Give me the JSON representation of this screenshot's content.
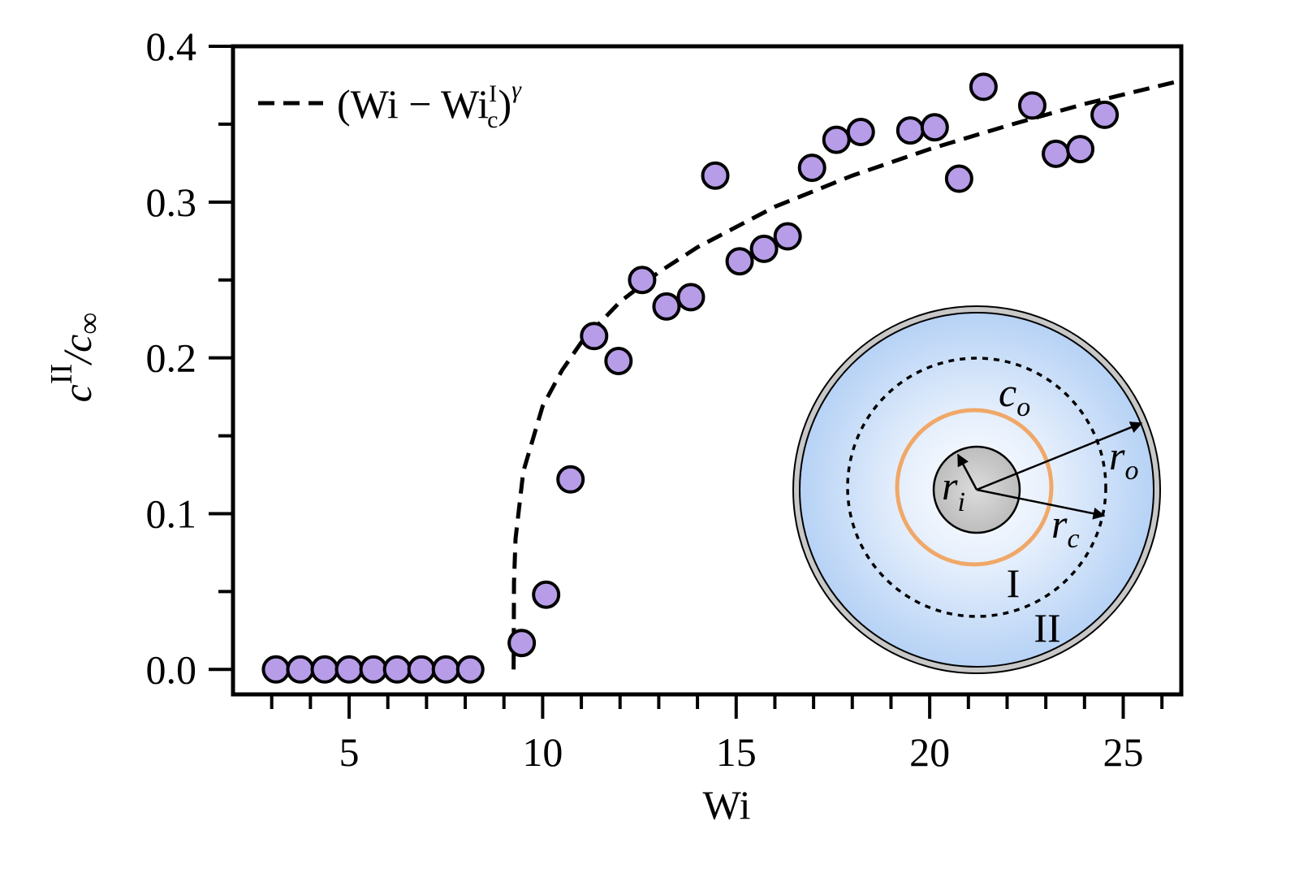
{
  "chart_data": {
    "type": "scatter",
    "xlabel": "Wi",
    "ylabel": [
      "c",
      "II",
      "/c",
      "∞"
    ],
    "x": [
      3.11,
      3.74,
      4.37,
      5.0,
      5.63,
      6.24,
      6.87,
      7.5,
      8.13,
      9.46,
      10.09,
      10.72,
      11.33,
      11.96,
      12.57,
      13.2,
      13.83,
      14.46,
      15.09,
      15.72,
      16.33,
      16.96,
      17.59,
      18.22,
      19.5,
      20.13,
      20.76,
      21.39,
      22.65,
      23.26,
      23.89,
      24.52
    ],
    "values": [
      0,
      0,
      0,
      0,
      0,
      0,
      0,
      0,
      0,
      0.017,
      0.048,
      0.122,
      0.214,
      0.198,
      0.25,
      0.233,
      0.239,
      0.317,
      0.262,
      0.27,
      0.278,
      0.322,
      0.34,
      0.345,
      0.346,
      0.348,
      0.315,
      0.374,
      0.362,
      0.331,
      0.334,
      0.356
    ],
    "color": "#b79de8",
    "fit": {
      "label": [
        "(Wi − Wi",
        "I",
        "c",
        ")",
        "γ"
      ],
      "color": "#000000",
      "x": [
        9.25,
        9.26,
        9.3,
        9.5,
        10,
        10.5,
        11,
        12,
        13,
        14,
        16,
        18,
        20,
        22,
        24,
        26.5
      ],
      "values": [
        0,
        0.056,
        0.084,
        0.127,
        0.169,
        0.192,
        0.21,
        0.236,
        0.255,
        0.271,
        0.297,
        0.317,
        0.334,
        0.349,
        0.363,
        0.378
      ]
    },
    "xlim": [
      2,
      26.5
    ],
    "ylim": [
      -0.016,
      0.4
    ],
    "xticks": [
      5,
      10,
      15,
      20,
      25
    ],
    "xticks_minor": [
      3,
      4,
      6,
      7,
      8,
      9,
      11,
      12,
      13,
      14,
      16,
      17,
      18,
      19,
      21,
      22,
      23,
      24,
      26
    ],
    "yticks": [
      {
        "value": 0,
        "label": "0.0"
      },
      0.1,
      0.2,
      0.3,
      0.4
    ],
    "yticks_minor": [
      0.05,
      0.15,
      0.25,
      0.35
    ],
    "legend": "upper left",
    "inset": {
      "c_o": [
        "c",
        "o"
      ],
      "r_o": [
        "r",
        "o"
      ],
      "r_i": [
        "r",
        "i"
      ],
      "r_c": [
        "r",
        "c"
      ],
      "region_1": "I",
      "region_2": "II"
    }
  }
}
